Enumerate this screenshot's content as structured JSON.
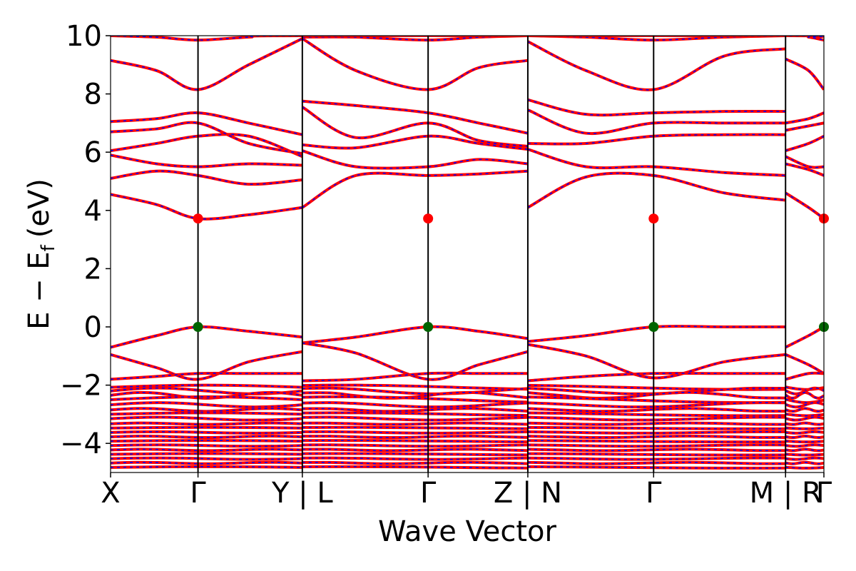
{
  "chart_data": {
    "type": "line",
    "title": "",
    "xlabel": "Wave Vector",
    "ylabel": "E − E",
    "ylabel_sub": "f",
    "ylabel_unit": "(eV)",
    "ylim": [
      -5,
      10
    ],
    "yticks": [
      -4,
      -2,
      0,
      2,
      4,
      6,
      8,
      10
    ],
    "ytick_labels": [
      "−4",
      "−2",
      "0",
      "2",
      "4",
      "6",
      "8",
      "10"
    ],
    "grid": false,
    "legend": "none",
    "xlim": [
      0,
      4.65
    ],
    "kpoint_labels": [
      {
        "label": "X",
        "x": 0
      },
      {
        "label": "Γ",
        "x": 0.57
      },
      {
        "label": "Y | L",
        "x": 1.25
      },
      {
        "label": "Γ",
        "x": 2.07
      },
      {
        "label": "Z | N",
        "x": 2.72
      },
      {
        "label": "Γ",
        "x": 3.54
      },
      {
        "label": "M | R",
        "x": 4.4
      },
      {
        "label": "Γ",
        "x": 4.65
      }
    ],
    "vlines": [
      0.57,
      1.25,
      2.07,
      2.72,
      3.54,
      4.4
    ],
    "segments": [
      [
        0,
        1.25
      ],
      [
        1.25,
        2.72
      ],
      [
        2.72,
        4.4
      ],
      [
        4.4,
        4.65
      ]
    ],
    "series_style": {
      "primary_color": "#ff0000",
      "overlay_color": "#0000ff",
      "marker_cbm_color": "#ff0000",
      "marker_vbm_color": "#006400"
    },
    "cbm_markers": [
      {
        "x": 0.57,
        "y": 3.72
      },
      {
        "x": 2.07,
        "y": 3.72
      },
      {
        "x": 3.54,
        "y": 3.72
      },
      {
        "x": 4.65,
        "y": 3.72
      }
    ],
    "vbm_markers": [
      {
        "x": 0.57,
        "y": 0.0
      },
      {
        "x": 2.07,
        "y": 0.0
      },
      {
        "x": 3.54,
        "y": 0.0
      },
      {
        "x": 4.65,
        "y": 0.0
      }
    ],
    "bands": [
      [
        [
          0,
          4.55
        ],
        [
          0.3,
          4.2
        ],
        [
          0.57,
          3.72
        ],
        [
          0.9,
          3.85
        ],
        [
          1.25,
          4.1
        ],
        [
          1.25,
          4.1
        ],
        [
          1.6,
          5.2
        ],
        [
          2.07,
          5.2
        ],
        [
          2.4,
          5.25
        ],
        [
          2.72,
          5.35
        ],
        [
          2.72,
          4.1
        ],
        [
          3.1,
          5.15
        ],
        [
          3.54,
          5.2
        ],
        [
          4.0,
          4.6
        ],
        [
          4.4,
          4.35
        ],
        [
          4.4,
          4.6
        ],
        [
          4.55,
          4.1
        ],
        [
          4.65,
          3.72
        ]
      ],
      [
        [
          0,
          5.1
        ],
        [
          0.3,
          5.35
        ],
        [
          0.57,
          5.2
        ],
        [
          0.9,
          4.9
        ],
        [
          1.25,
          5.05
        ],
        [
          1.25,
          6.05
        ],
        [
          1.6,
          5.5
        ],
        [
          2.07,
          5.5
        ],
        [
          2.4,
          5.75
        ],
        [
          2.72,
          5.6
        ],
        [
          2.72,
          6.1
        ],
        [
          3.1,
          5.5
        ],
        [
          3.54,
          5.5
        ],
        [
          4.0,
          5.3
        ],
        [
          4.4,
          5.2
        ],
        [
          4.4,
          5.6
        ],
        [
          4.55,
          5.4
        ],
        [
          4.65,
          5.2
        ]
      ],
      [
        [
          0,
          5.9
        ],
        [
          0.3,
          5.6
        ],
        [
          0.57,
          5.5
        ],
        [
          0.9,
          5.6
        ],
        [
          1.25,
          5.55
        ],
        [
          1.25,
          6.25
        ],
        [
          1.6,
          6.15
        ],
        [
          2.07,
          6.55
        ],
        [
          2.4,
          6.3
        ],
        [
          2.72,
          6.1
        ],
        [
          2.72,
          6.3
        ],
        [
          3.1,
          6.3
        ],
        [
          3.54,
          6.55
        ],
        [
          4.0,
          6.6
        ],
        [
          4.4,
          6.6
        ],
        [
          4.4,
          5.85
        ],
        [
          4.55,
          5.5
        ],
        [
          4.65,
          5.5
        ]
      ],
      [
        [
          0,
          6.05
        ],
        [
          0.3,
          6.3
        ],
        [
          0.57,
          6.55
        ],
        [
          0.9,
          6.55
        ],
        [
          1.25,
          5.85
        ],
        [
          1.25,
          7.55
        ],
        [
          1.6,
          6.5
        ],
        [
          2.07,
          7.0
        ],
        [
          2.4,
          6.4
        ],
        [
          2.72,
          6.2
        ],
        [
          2.72,
          7.45
        ],
        [
          3.1,
          6.65
        ],
        [
          3.54,
          7.0
        ],
        [
          4.0,
          7.0
        ],
        [
          4.4,
          7.0
        ],
        [
          4.4,
          6.05
        ],
        [
          4.55,
          6.3
        ],
        [
          4.65,
          6.55
        ]
      ],
      [
        [
          0,
          6.7
        ],
        [
          0.3,
          6.8
        ],
        [
          0.57,
          7.0
        ],
        [
          0.9,
          6.3
        ],
        [
          1.25,
          5.95
        ],
        [
          1.25,
          7.75
        ],
        [
          1.6,
          7.6
        ],
        [
          2.07,
          7.35
        ],
        [
          2.4,
          7.0
        ],
        [
          2.72,
          6.65
        ],
        [
          2.72,
          7.8
        ],
        [
          3.1,
          7.3
        ],
        [
          3.54,
          7.35
        ],
        [
          4.0,
          7.4
        ],
        [
          4.4,
          7.4
        ],
        [
          4.4,
          6.75
        ],
        [
          4.55,
          6.9
        ],
        [
          4.65,
          7.0
        ]
      ],
      [
        [
          0,
          7.05
        ],
        [
          0.3,
          7.15
        ],
        [
          0.57,
          7.35
        ],
        [
          0.9,
          7.0
        ],
        [
          1.25,
          6.6
        ],
        [
          1.25,
          9.9
        ],
        [
          1.6,
          8.8
        ],
        [
          2.07,
          8.15
        ],
        [
          2.4,
          8.9
        ],
        [
          2.72,
          9.15
        ],
        [
          2.72,
          9.8
        ],
        [
          3.1,
          8.8
        ],
        [
          3.54,
          8.15
        ],
        [
          4.0,
          9.3
        ],
        [
          4.4,
          9.55
        ],
        [
          4.4,
          7.0
        ],
        [
          4.55,
          7.15
        ],
        [
          4.65,
          7.35
        ]
      ],
      [
        [
          0,
          9.15
        ],
        [
          0.3,
          8.8
        ],
        [
          0.57,
          8.15
        ],
        [
          0.9,
          9.0
        ],
        [
          1.25,
          9.9
        ],
        [
          1.25,
          9.95
        ],
        [
          1.6,
          9.95
        ],
        [
          2.07,
          9.85
        ],
        [
          2.4,
          9.95
        ],
        [
          2.72,
          10.0
        ],
        [
          2.72,
          10.0
        ],
        [
          3.1,
          9.95
        ],
        [
          3.54,
          9.85
        ],
        [
          4.0,
          9.95
        ],
        [
          4.4,
          10.0
        ],
        [
          4.4,
          9.2
        ],
        [
          4.55,
          8.8
        ],
        [
          4.65,
          8.15
        ]
      ],
      [
        [
          0,
          10.0
        ],
        [
          0.3,
          9.95
        ],
        [
          0.57,
          9.85
        ],
        [
          0.9,
          9.95
        ],
        [
          1.25,
          10.0
        ],
        [
          4.4,
          10.0
        ],
        [
          4.55,
          9.95
        ],
        [
          4.65,
          9.85
        ]
      ],
      [
        [
          0,
          -0.7
        ],
        [
          0.3,
          -0.3
        ],
        [
          0.57,
          0.0
        ],
        [
          0.9,
          -0.15
        ],
        [
          1.25,
          -0.35
        ],
        [
          1.25,
          -0.55
        ],
        [
          1.6,
          -0.35
        ],
        [
          2.07,
          0.0
        ],
        [
          2.4,
          -0.15
        ],
        [
          2.72,
          -0.4
        ],
        [
          2.72,
          -0.5
        ],
        [
          3.1,
          -0.3
        ],
        [
          3.54,
          0.0
        ],
        [
          4.0,
          0.0
        ],
        [
          4.4,
          0.0
        ],
        [
          4.4,
          -0.7
        ],
        [
          4.55,
          -0.3
        ],
        [
          4.65,
          0.0
        ]
      ],
      [
        [
          0,
          -0.95
        ],
        [
          0.3,
          -1.4
        ],
        [
          0.57,
          -1.8
        ],
        [
          0.9,
          -1.2
        ],
        [
          1.25,
          -0.85
        ],
        [
          1.25,
          -0.55
        ],
        [
          1.6,
          -0.9
        ],
        [
          2.07,
          -1.8
        ],
        [
          2.4,
          -1.3
        ],
        [
          2.72,
          -0.85
        ],
        [
          2.72,
          -0.6
        ],
        [
          3.1,
          -1.0
        ],
        [
          3.54,
          -1.75
        ],
        [
          4.0,
          -1.2
        ],
        [
          4.4,
          -0.95
        ],
        [
          4.4,
          -0.95
        ],
        [
          4.55,
          -1.3
        ],
        [
          4.65,
          -1.6
        ]
      ],
      [
        [
          0,
          -1.8
        ],
        [
          0.3,
          -1.7
        ],
        [
          0.57,
          -1.6
        ],
        [
          0.9,
          -1.6
        ],
        [
          1.25,
          -1.6
        ],
        [
          1.25,
          -1.85
        ],
        [
          1.6,
          -1.8
        ],
        [
          2.07,
          -1.6
        ],
        [
          2.4,
          -1.6
        ],
        [
          2.72,
          -1.6
        ],
        [
          2.72,
          -1.85
        ],
        [
          3.1,
          -1.7
        ],
        [
          3.54,
          -1.6
        ],
        [
          4.0,
          -1.6
        ],
        [
          4.4,
          -1.6
        ],
        [
          4.4,
          -1.8
        ],
        [
          4.55,
          -1.6
        ],
        [
          4.65,
          -1.6
        ]
      ]
    ],
    "deep_bands": [
      [
        -2.15,
        -2.0
      ],
      [
        -2.3,
        -2.1
      ],
      [
        -2.45,
        -2.25
      ],
      [
        -2.6,
        -2.4
      ],
      [
        -2.75,
        -2.6
      ],
      [
        -2.9,
        -2.8
      ],
      [
        -3.05,
        -2.95
      ],
      [
        -3.2,
        -3.1
      ],
      [
        -3.35,
        -3.3
      ],
      [
        -3.5,
        -3.45
      ],
      [
        -3.65,
        -3.6
      ],
      [
        -3.8,
        -3.75
      ],
      [
        -3.95,
        -3.9
      ],
      [
        -4.1,
        -4.05
      ],
      [
        -4.25,
        -4.2
      ],
      [
        -4.4,
        -4.35
      ],
      [
        -4.55,
        -4.5
      ],
      [
        -4.7,
        -4.65
      ],
      [
        -4.85,
        -4.8
      ]
    ]
  }
}
